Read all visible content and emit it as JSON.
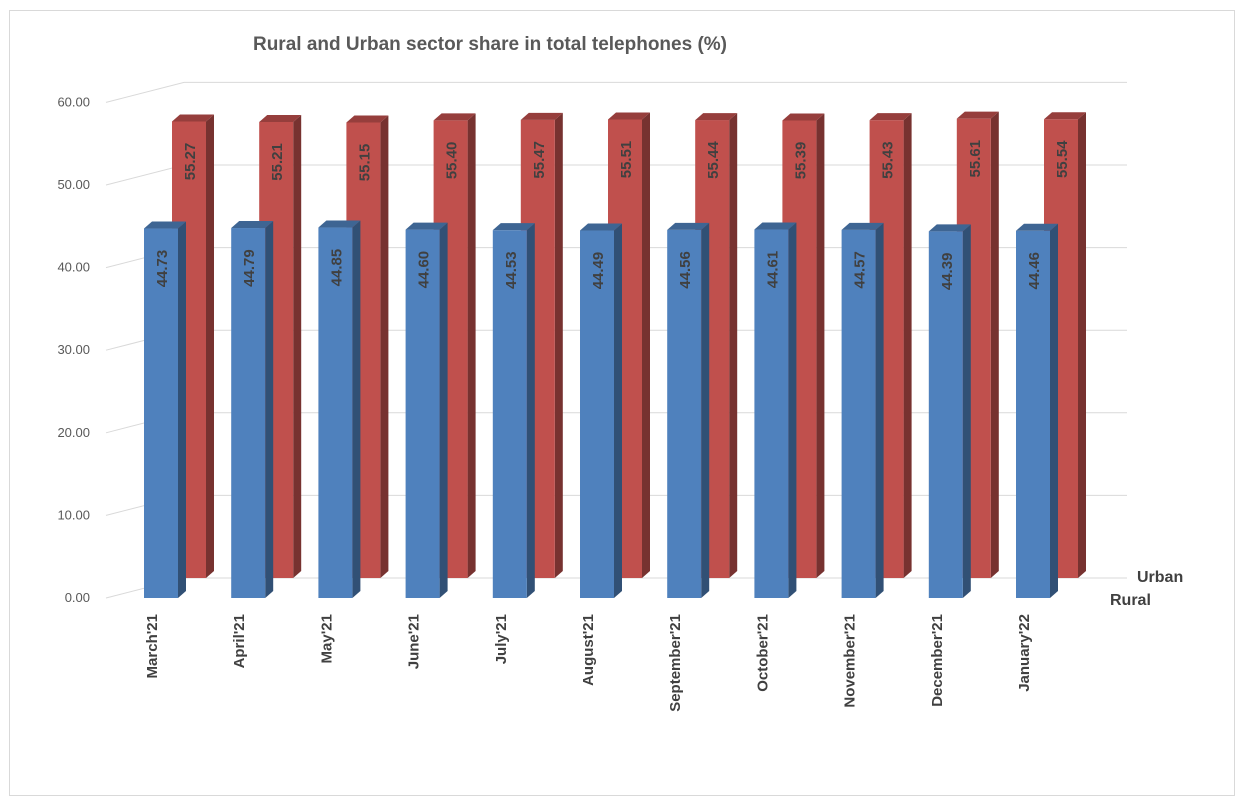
{
  "chart_data": {
    "type": "bar",
    "title": "Rural and Urban sector share in total telephones (%)",
    "categories": [
      "March'21",
      "April'21",
      "May'21",
      "June'21",
      "July'21",
      "August'21",
      "September'21",
      "October'21",
      "November'21",
      "December'21",
      "January'22"
    ],
    "series": [
      {
        "name": "Rural",
        "color": "#4f81bd",
        "values": [
          44.73,
          44.79,
          44.85,
          44.6,
          44.53,
          44.49,
          44.56,
          44.61,
          44.57,
          44.39,
          44.46
        ],
        "labels": [
          "44.73",
          "44.79",
          "44.85",
          "44.60",
          "44.53",
          "44.49",
          "44.56",
          "44.61",
          "44.57",
          "44.39",
          "44.46"
        ]
      },
      {
        "name": "Urban",
        "color": "#c0504d",
        "values": [
          55.27,
          55.21,
          55.15,
          55.4,
          55.47,
          55.51,
          55.44,
          55.39,
          55.43,
          55.61,
          55.54
        ],
        "labels": [
          "55.27",
          "55.21",
          "55.15",
          "55.40",
          "55.47",
          "55.51",
          "55.44",
          "55.39",
          "55.43",
          "55.61",
          "55.54"
        ]
      }
    ],
    "y_ticks": [
      "0.00",
      "10.00",
      "20.00",
      "30.00",
      "40.00",
      "50.00",
      "60.00"
    ],
    "ylim": [
      0,
      60
    ],
    "grid": true,
    "style": "3d-clustered-column",
    "data_labels": "vertical"
  }
}
